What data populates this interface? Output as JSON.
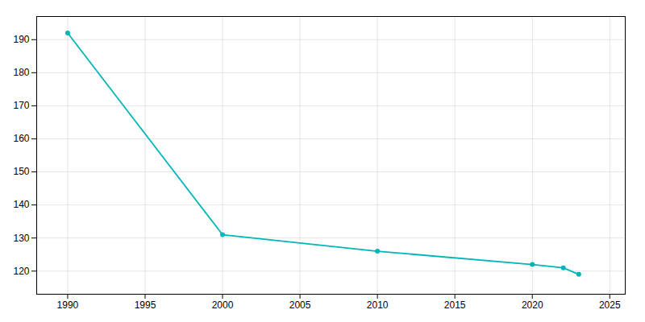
{
  "chart_data": {
    "type": "line",
    "x": [
      1990,
      2000,
      2010,
      2020,
      2022,
      2023
    ],
    "values": [
      192,
      131,
      126,
      122,
      121,
      119
    ],
    "color": "#00b5b8",
    "marker": "circle",
    "xlim": [
      1988,
      2026
    ],
    "ylim": [
      113,
      197
    ],
    "xticks": [
      1990,
      1995,
      2000,
      2005,
      2010,
      2015,
      2020,
      2025
    ],
    "yticks": [
      120,
      130,
      140,
      150,
      160,
      170,
      180,
      190
    ],
    "grid": true
  }
}
